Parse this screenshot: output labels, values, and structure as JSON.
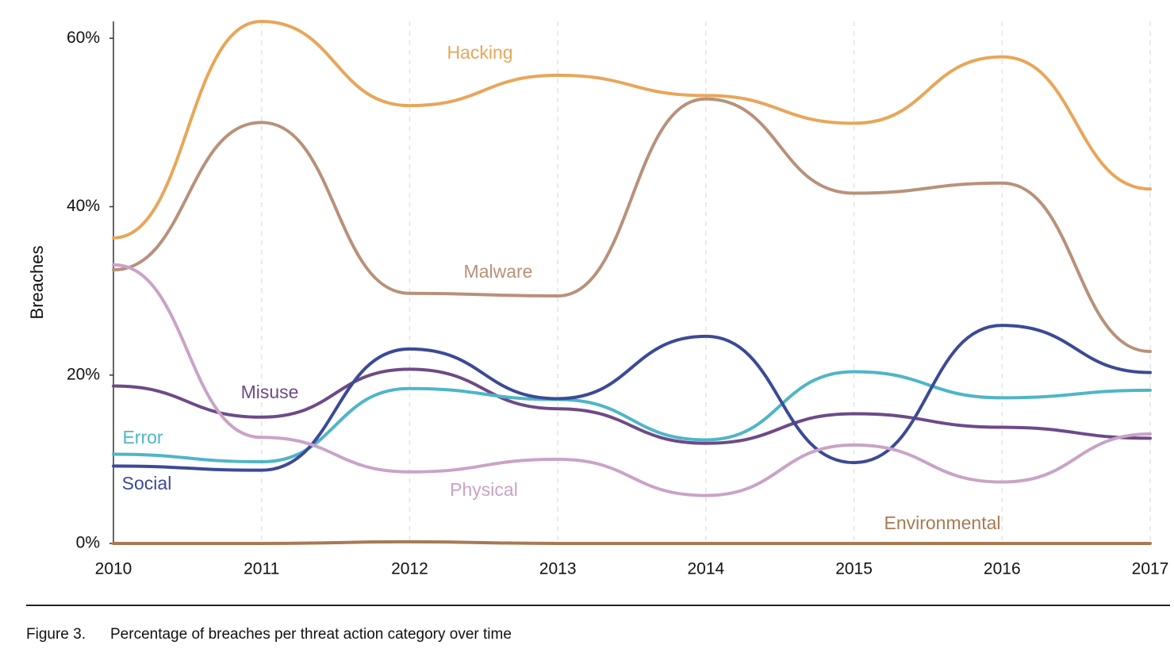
{
  "chart_data": {
    "type": "line",
    "y_label": "Breaches",
    "figure_label": "Figure 3.",
    "caption": "Percentage of breaches per threat action category over time",
    "categories": [
      "2010",
      "2011",
      "2012",
      "2013",
      "2014",
      "2015",
      "2016",
      "2017"
    ],
    "series": [
      {
        "name": "Hacking",
        "color": "#e8a659",
        "values": [
          36.3,
          62,
          52,
          55.6,
          53.2,
          49.9,
          57.8,
          42.1
        ]
      },
      {
        "name": "Malware",
        "color": "#b8917a",
        "values": [
          32.5,
          50,
          29.7,
          29.4,
          52.8,
          41.6,
          42.8,
          22.8
        ]
      },
      {
        "name": "Misuse",
        "color": "#6e4a87",
        "values": [
          18.7,
          15,
          20.7,
          16,
          11.9,
          15.4,
          13.8,
          12.5
        ]
      },
      {
        "name": "Error",
        "color": "#4fb5c8",
        "values": [
          10.6,
          9.7,
          18.4,
          17.1,
          12.3,
          20.4,
          17.3,
          18.2
        ]
      },
      {
        "name": "Social",
        "color": "#3b4a96",
        "values": [
          9.2,
          8.7,
          23.1,
          17.2,
          24.6,
          9.6,
          25.9,
          20.3
        ]
      },
      {
        "name": "Physical",
        "color": "#c9a3c6",
        "values": [
          33.1,
          12.6,
          8.5,
          10,
          5.7,
          11.7,
          7.3,
          13
        ]
      },
      {
        "name": "Environmental",
        "color": "#a87a52",
        "values": [
          0,
          0,
          0.2,
          0,
          0,
          0,
          0,
          0
        ]
      }
    ],
    "ylim": [
      0,
      62
    ],
    "yticks": [
      {
        "value": 0,
        "label": "0%"
      },
      {
        "value": 20,
        "label": "20%"
      },
      {
        "value": 40,
        "label": "40%"
      },
      {
        "value": 60,
        "label": "60%"
      }
    ],
    "grid": true
  }
}
